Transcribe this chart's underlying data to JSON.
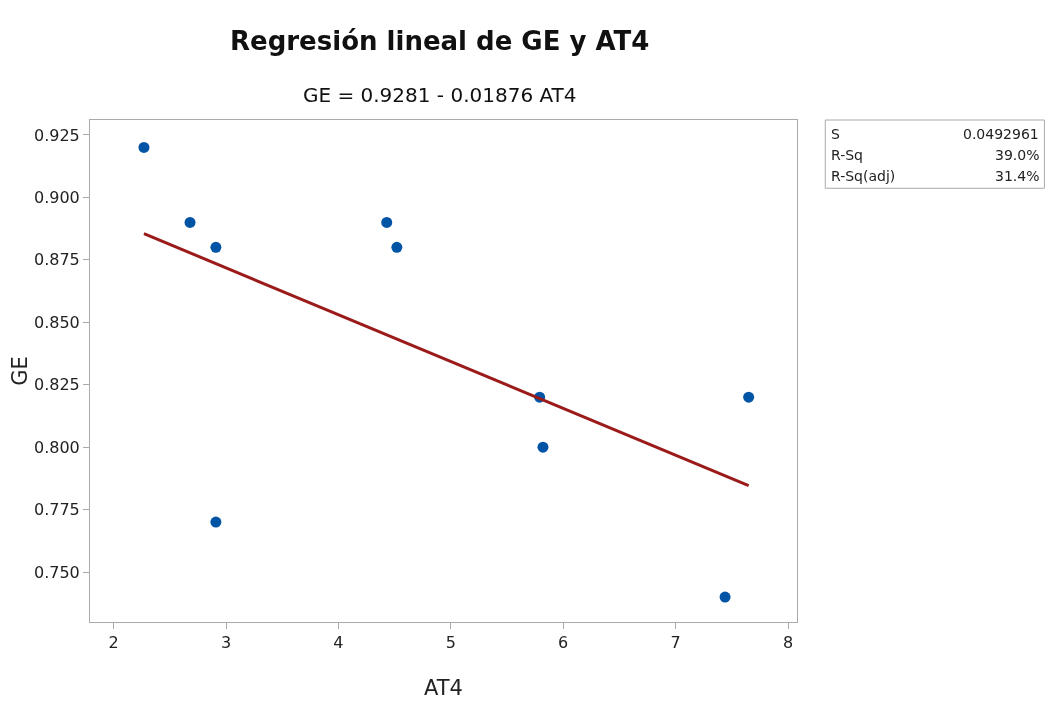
{
  "chart_data": {
    "type": "scatter",
    "title": "Regresión lineal de GE y AT4",
    "subtitle": "GE = 0.9281 - 0.01876 AT4",
    "xlabel": "AT4",
    "ylabel": "GE",
    "x": [
      2.27,
      2.68,
      2.91,
      2.91,
      4.43,
      4.52,
      5.79,
      5.82,
      7.44,
      7.65
    ],
    "series": [
      {
        "color": "#0054a6",
        "values": [
          0.92,
          0.89,
          0.88,
          0.77,
          0.89,
          0.88,
          0.82,
          0.8,
          0.74,
          0.82
        ],
        "marker": "circle"
      },
      {
        "type": "line",
        "color": "#9b1b1b",
        "x": [
          2.27,
          7.65
        ],
        "values": [
          0.8855,
          0.7846
        ],
        "line_style": "solid"
      }
    ],
    "xlim": [
      1.79,
      8.08
    ],
    "xticks": [
      2,
      3,
      4,
      5,
      6,
      7,
      8
    ],
    "ylim": [
      0.73,
      0.931
    ],
    "yticks": [
      {
        "value": 0.75,
        "label": "0.750"
      },
      0.775,
      {
        "value": 0.8,
        "label": "0.800"
      },
      0.825,
      {
        "value": 0.85,
        "label": "0.850"
      },
      0.875,
      {
        "value": 0.9,
        "label": "0.900"
      },
      0.925
    ],
    "grid": false,
    "annotations": [
      "S",
      "0.0492961",
      "R-Sq",
      "39.0%",
      "R-Sq(adj)",
      "31.4%"
    ]
  }
}
